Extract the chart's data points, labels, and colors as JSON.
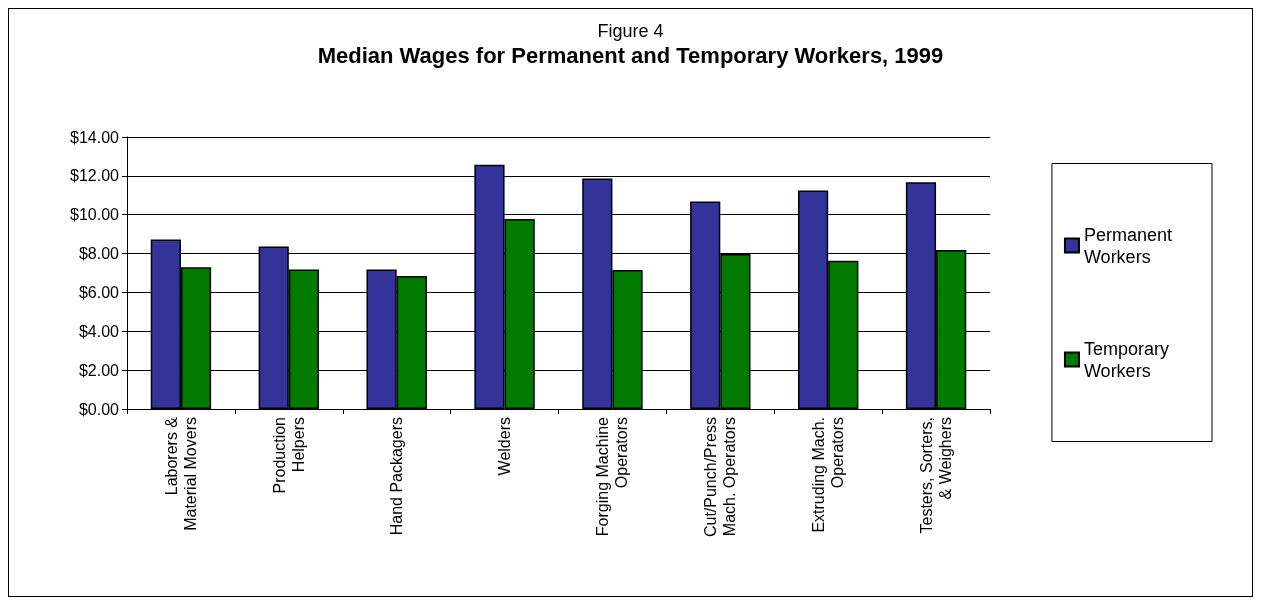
{
  "chart_data": {
    "type": "bar",
    "subtitle": "Figure 4",
    "title": "Median Wages for Permanent and Temporary Workers, 1999",
    "categories": [
      "Laborers &\nMaterial Movers",
      "Production\nHelpers",
      "Hand Packagers",
      "Welders",
      "Forging Machine\nOperators",
      "Cut/Punch/Press\nMach. Operators",
      "Extruding Mach.\nOperators",
      "Testers, Sorters,\n& Weighers"
    ],
    "series": [
      {
        "name": "Permanent\nWorkers",
        "color": "#333399",
        "values": [
          8.72,
          8.36,
          7.18,
          12.57,
          11.87,
          10.68,
          11.24,
          11.67
        ]
      },
      {
        "name": "Temporary\nWorkers",
        "color": "#007a00",
        "values": [
          7.3,
          7.18,
          6.85,
          9.78,
          7.15,
          7.98,
          7.63,
          8.18
        ]
      }
    ],
    "ylim": [
      0,
      14
    ],
    "yticks": [
      {
        "value": 0,
        "label": "$0.00"
      },
      {
        "value": 2,
        "label": "$2.00"
      },
      {
        "value": 4,
        "label": "$4.00"
      },
      {
        "value": 6,
        "label": "$6.00"
      },
      {
        "value": 8,
        "label": "$8.00"
      },
      {
        "value": 10,
        "label": "$10.00"
      },
      {
        "value": 12,
        "label": "$12.00"
      },
      {
        "value": 14,
        "label": "$14.00"
      }
    ],
    "grid": "y",
    "legend": "right"
  }
}
